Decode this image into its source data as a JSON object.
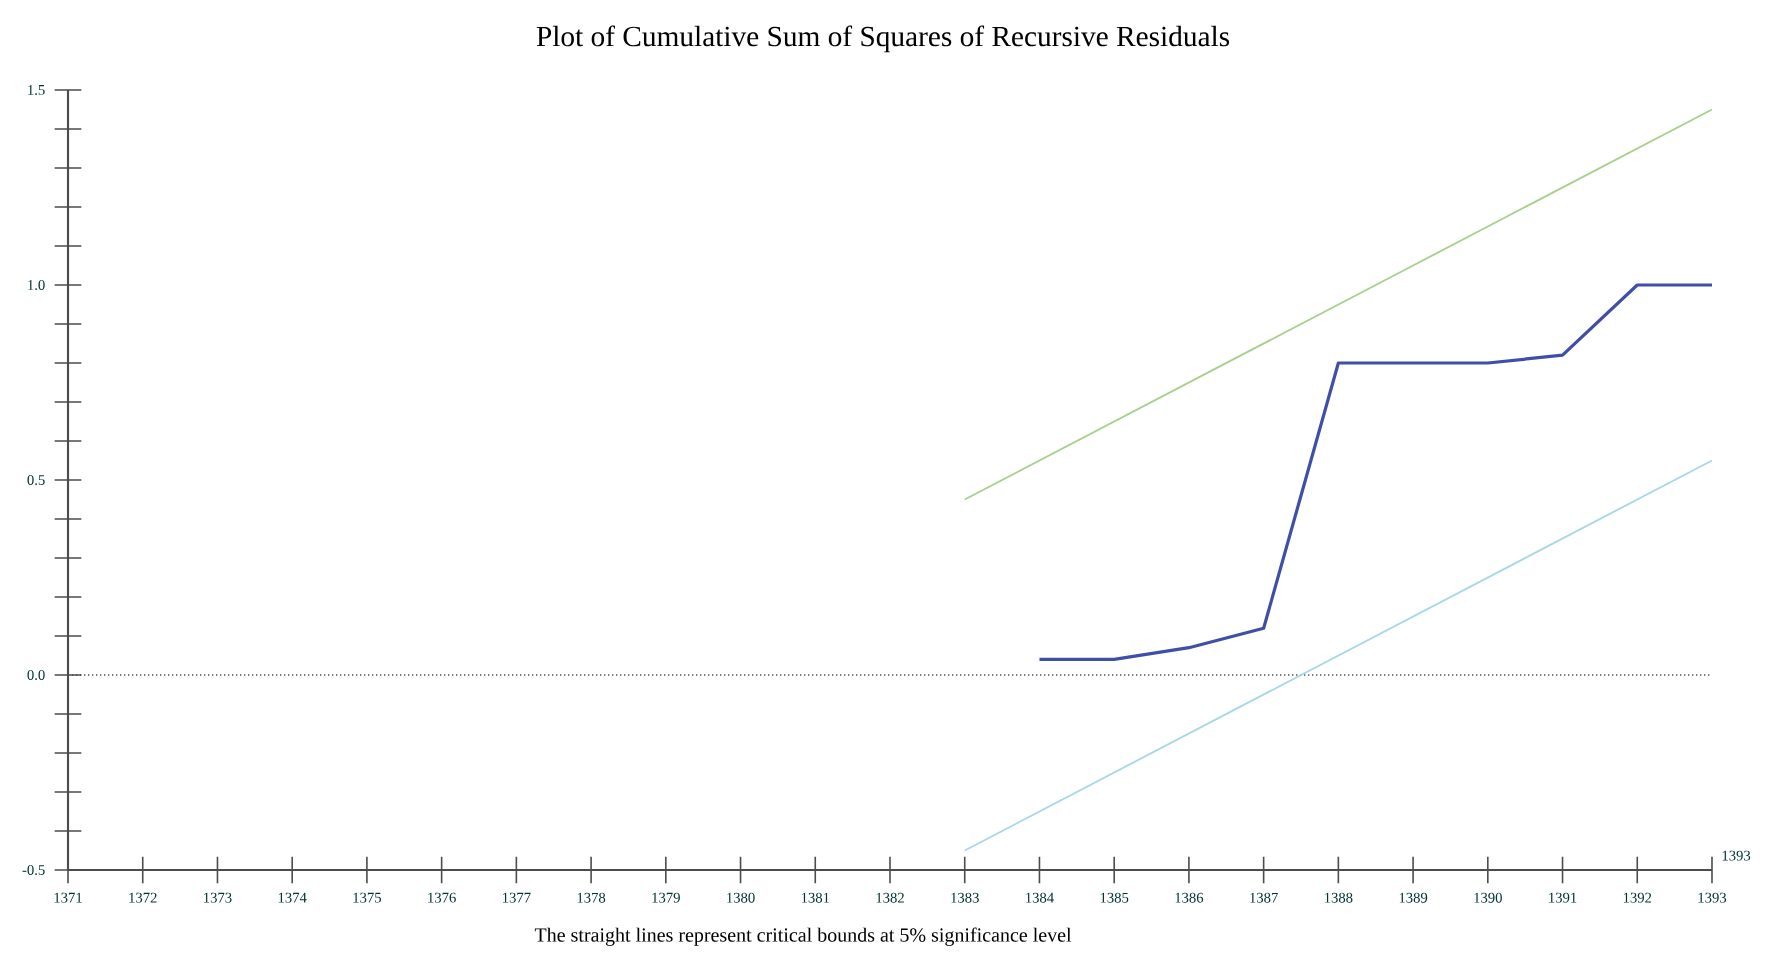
{
  "chart_data": {
    "type": "line",
    "title": "Plot of Cumulative Sum of Squares of Recursive Residuals",
    "xlabel": "1393",
    "annotations": [
      "The straight lines represent critical bounds at 5% significance level"
    ],
    "x": [
      1383,
      1384,
      1385,
      1386,
      1387,
      1388,
      1389,
      1390,
      1391,
      1392,
      1393
    ],
    "series": [
      {
        "color": "#3f4fa8",
        "values": [
          null,
          0.04,
          0.04,
          0.07,
          0.12,
          0.8,
          0.8,
          0.8,
          0.82,
          1.0,
          1.0
        ]
      },
      {
        "color": "#a8d08d",
        "values": [
          0.45,
          0.55,
          0.65,
          0.75,
          0.85,
          0.95,
          1.05,
          1.15,
          1.25,
          1.35,
          1.45
        ]
      },
      {
        "color": "#a8d8e8",
        "values": [
          -0.45,
          -0.35,
          -0.25,
          -0.15,
          -0.05,
          0.05,
          0.15,
          0.25,
          0.35,
          0.45,
          0.55
        ]
      }
    ],
    "xlim": [
      1371,
      1393
    ],
    "ylim": [
      -0.5,
      1.5
    ],
    "xticks": [
      1371,
      1372,
      1373,
      1374,
      1375,
      1376,
      1377,
      1378,
      1379,
      1380,
      1381,
      1382,
      1383,
      1384,
      1385,
      1386,
      1387,
      1388,
      1389,
      1390,
      1391,
      1392,
      1393
    ],
    "yticks": [
      {
        "value": -0.5,
        "label": "-0.5"
      },
      {
        "value": -0.4,
        "label": null
      },
      {
        "value": -0.3,
        "label": null
      },
      {
        "value": -0.2,
        "label": null
      },
      {
        "value": -0.1,
        "label": null
      },
      {
        "value": 0,
        "label": "0.0"
      },
      {
        "value": 0.1,
        "label": null
      },
      {
        "value": 0.2,
        "label": null
      },
      {
        "value": 0.3,
        "label": null
      },
      {
        "value": 0.4,
        "label": null
      },
      {
        "value": 0.5,
        "label": "0.5"
      },
      {
        "value": 0.6,
        "label": null
      },
      {
        "value": 0.7,
        "label": null
      },
      {
        "value": 0.8,
        "label": null
      },
      {
        "value": 0.9,
        "label": null
      },
      {
        "value": 1,
        "label": "1.0"
      },
      {
        "value": 1.1,
        "label": null
      },
      {
        "value": 1.2,
        "label": null
      },
      {
        "value": 1.3,
        "label": null
      },
      {
        "value": 1.4,
        "label": null
      },
      {
        "value": 1.5,
        "label": "1.5"
      }
    ],
    "ref_lines": [
      {
        "axis": "y",
        "value": 0,
        "line_style": "dotted"
      }
    ],
    "grid": false,
    "marker": "none",
    "line_style": "solid"
  }
}
